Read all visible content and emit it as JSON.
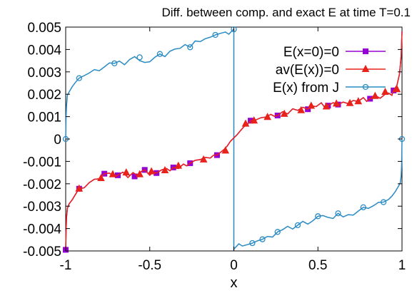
{
  "chart_data": {
    "type": "line",
    "title": "Diff. between comp. and exact E at time T=0.1",
    "xlabel": "x",
    "ylabel": "",
    "xlim": [
      -1,
      1
    ],
    "ylim": [
      -0.005,
      0.005
    ],
    "xticks": [
      -1,
      -0.5,
      0,
      0.5,
      1
    ],
    "xtick_labels": [
      "-1",
      "-0.5",
      "0",
      "0.5",
      "1"
    ],
    "yticks": [
      0.005,
      0.004,
      0.003,
      0.002,
      0.001,
      0,
      -0.001,
      -0.002,
      -0.003,
      -0.004,
      -0.005
    ],
    "ytick_labels": [
      "0.005",
      "0.004",
      "0.003",
      "0.002",
      "0.001",
      "0",
      "-0.001",
      "-0.002",
      "-0.003",
      "-0.004",
      "-0.005"
    ],
    "grid": false,
    "legend_position": "top-right",
    "series": [
      {
        "name": "E(x=0)=0",
        "color": "#9400d3",
        "marker": "square",
        "marker_x": [
          -1.0,
          -0.92,
          -0.77,
          -0.69,
          -0.59,
          -0.53,
          -0.46,
          -0.36,
          -0.26,
          -0.1,
          0.1,
          0.26,
          0.44,
          0.56,
          0.62,
          0.81,
          0.95
        ],
        "marker_y": [
          -0.00495,
          -0.00222,
          -0.00155,
          -0.00162,
          -0.00167,
          -0.00138,
          -0.00152,
          -0.00127,
          -0.00108,
          -0.00072,
          0.00082,
          0.00105,
          0.00133,
          0.00149,
          0.00154,
          0.0018,
          0.00217
        ],
        "x": [
          -1.0,
          -0.998,
          -0.995,
          -0.99,
          -0.98,
          -0.96,
          -0.94,
          -0.92,
          -0.89,
          -0.86,
          -0.83,
          -0.8,
          -0.77,
          -0.74,
          -0.71,
          -0.69,
          -0.66,
          -0.63,
          -0.6,
          -0.57,
          -0.55,
          -0.53,
          -0.5,
          -0.48,
          -0.46,
          -0.43,
          -0.4,
          -0.38,
          -0.36,
          -0.33,
          -0.3,
          -0.28,
          -0.26,
          -0.23,
          -0.2,
          -0.17,
          -0.14,
          -0.12,
          -0.1,
          -0.08,
          -0.06,
          -0.04,
          -0.02,
          0.0,
          0.02,
          0.04,
          0.06,
          0.08,
          0.1,
          0.13,
          0.16,
          0.19,
          0.22,
          0.24,
          0.26,
          0.29,
          0.32,
          0.35,
          0.38,
          0.41,
          0.44,
          0.46,
          0.49,
          0.52,
          0.54,
          0.56,
          0.59,
          0.62,
          0.65,
          0.68,
          0.71,
          0.74,
          0.77,
          0.79,
          0.81,
          0.84,
          0.87,
          0.9,
          0.92,
          0.94,
          0.95,
          0.97,
          0.985,
          0.995,
          1.0
        ],
        "y": [
          -0.00495,
          -0.0042,
          -0.0035,
          -0.0031,
          -0.0029,
          -0.0027,
          -0.00245,
          -0.00222,
          -0.00218,
          -0.00195,
          -0.0018,
          -0.00178,
          -0.00155,
          -0.00152,
          -0.00168,
          -0.00162,
          -0.00148,
          -0.00172,
          -0.0015,
          -0.00165,
          -0.00145,
          -0.00138,
          -0.00162,
          -0.00148,
          -0.00152,
          -0.00138,
          -0.00132,
          -0.00142,
          -0.00127,
          -0.00132,
          -0.00112,
          -0.0012,
          -0.00108,
          -0.00095,
          -0.00092,
          -0.00082,
          -0.00085,
          -0.00072,
          -0.00072,
          -0.0006,
          -0.00048,
          -0.00032,
          -0.0001,
          5e-05,
          0.0002,
          0.00038,
          0.00055,
          0.00065,
          0.00082,
          0.00085,
          0.00095,
          0.00098,
          0.0011,
          0.00102,
          0.00105,
          0.00122,
          0.00112,
          0.00135,
          0.00128,
          0.00142,
          0.00133,
          0.00148,
          0.00145,
          0.00162,
          0.00142,
          0.00149,
          0.00162,
          0.00154,
          0.00165,
          0.00158,
          0.00172,
          0.00168,
          0.00185,
          0.00168,
          0.0018,
          0.00195,
          0.00182,
          0.002,
          0.00205,
          0.00195,
          0.00217,
          0.0024,
          0.0029,
          0.0037,
          0.0048
        ]
      },
      {
        "name": "av(E(x))=0",
        "color": "#e8231a",
        "marker": "triangle",
        "marker_x": [
          -0.92,
          -0.79,
          -0.72,
          -0.64,
          -0.56,
          -0.49,
          -0.41,
          -0.33,
          -0.18,
          -0.05,
          0.07,
          0.12,
          0.2,
          0.3,
          0.4,
          0.46,
          0.55,
          0.61,
          0.69,
          0.74,
          0.84,
          0.9,
          0.97
        ],
        "marker_y": [
          -0.00222,
          -0.00175,
          -0.00158,
          -0.0015,
          -0.00158,
          -0.00145,
          -0.0014,
          -0.0012,
          -0.00092,
          -0.00052,
          0.00068,
          0.00082,
          0.00098,
          0.00112,
          0.00128,
          0.00148,
          0.00145,
          0.00158,
          0.0016,
          0.00168,
          0.00192,
          0.0021,
          0.00222
        ],
        "x": [
          -1.0,
          -0.998,
          -0.995,
          -0.99,
          -0.98,
          -0.96,
          -0.94,
          -0.92,
          -0.89,
          -0.86,
          -0.83,
          -0.8,
          -0.77,
          -0.74,
          -0.71,
          -0.69,
          -0.66,
          -0.63,
          -0.6,
          -0.57,
          -0.55,
          -0.53,
          -0.5,
          -0.48,
          -0.46,
          -0.43,
          -0.4,
          -0.38,
          -0.36,
          -0.33,
          -0.3,
          -0.28,
          -0.26,
          -0.23,
          -0.2,
          -0.17,
          -0.14,
          -0.12,
          -0.1,
          -0.08,
          -0.06,
          -0.04,
          -0.02,
          0.0,
          0.02,
          0.04,
          0.06,
          0.08,
          0.1,
          0.13,
          0.16,
          0.19,
          0.22,
          0.24,
          0.26,
          0.29,
          0.32,
          0.35,
          0.38,
          0.41,
          0.44,
          0.46,
          0.49,
          0.52,
          0.54,
          0.56,
          0.59,
          0.62,
          0.65,
          0.68,
          0.71,
          0.74,
          0.77,
          0.79,
          0.81,
          0.84,
          0.87,
          0.9,
          0.92,
          0.94,
          0.95,
          0.97,
          0.985,
          0.995,
          1.0
        ],
        "y": [
          -0.00495,
          -0.0042,
          -0.0035,
          -0.0031,
          -0.0029,
          -0.0027,
          -0.00245,
          -0.00222,
          -0.00218,
          -0.00195,
          -0.0018,
          -0.00178,
          -0.00155,
          -0.00152,
          -0.00168,
          -0.00162,
          -0.00148,
          -0.00172,
          -0.0015,
          -0.00165,
          -0.00145,
          -0.00138,
          -0.00162,
          -0.00148,
          -0.00152,
          -0.00138,
          -0.00132,
          -0.00142,
          -0.00127,
          -0.00132,
          -0.00112,
          -0.0012,
          -0.00108,
          -0.00095,
          -0.00092,
          -0.00082,
          -0.00085,
          -0.00072,
          -0.00072,
          -0.0006,
          -0.00048,
          -0.00032,
          -0.0001,
          5e-05,
          0.0002,
          0.00038,
          0.00055,
          0.00065,
          0.00082,
          0.00085,
          0.00095,
          0.00098,
          0.0011,
          0.00102,
          0.00105,
          0.00122,
          0.00112,
          0.00135,
          0.00128,
          0.00142,
          0.00133,
          0.00148,
          0.00145,
          0.00162,
          0.00142,
          0.00149,
          0.00162,
          0.00154,
          0.00165,
          0.00158,
          0.00172,
          0.00168,
          0.00185,
          0.00168,
          0.0018,
          0.00195,
          0.00182,
          0.002,
          0.00205,
          0.00195,
          0.00217,
          0.0024,
          0.0029,
          0.0037,
          0.0048
        ]
      },
      {
        "name": "E(x) from J",
        "color": "#2a8bc4",
        "marker": "circle",
        "segments": [
          {
            "x": [
              -1.0,
              -0.998,
              -0.995,
              -0.99,
              -0.98,
              -0.96,
              -0.94,
              -0.92,
              -0.89,
              -0.86,
              -0.83,
              -0.8,
              -0.77,
              -0.74,
              -0.71,
              -0.68,
              -0.65,
              -0.62,
              -0.59,
              -0.56,
              -0.53,
              -0.5,
              -0.47,
              -0.44,
              -0.41,
              -0.38,
              -0.35,
              -0.32,
              -0.29,
              -0.26,
              -0.23,
              -0.2,
              -0.17,
              -0.14,
              -0.11,
              -0.08,
              -0.05,
              -0.03,
              -0.015,
              -0.005,
              0.0
            ],
            "y": [
              0.0,
              0.0009,
              0.0015,
              0.00195,
              0.0021,
              0.00235,
              0.00255,
              0.00272,
              0.00283,
              0.00295,
              0.0031,
              0.00305,
              0.00322,
              0.0034,
              0.00338,
              0.00348,
              0.00332,
              0.00355,
              0.00368,
              0.0035,
              0.00342,
              0.00345,
              0.00365,
              0.0038,
              0.00368,
              0.00392,
              0.00402,
              0.00405,
              0.00422,
              0.0041,
              0.00438,
              0.00435,
              0.00448,
              0.00455,
              0.00465,
              0.00472,
              0.00478,
              0.00468,
              0.0048,
              0.00488,
              0.0049
            ],
            "marker_x": [
              -1.0,
              -0.92,
              -0.71,
              -0.56,
              -0.44,
              -0.26,
              -0.11,
              0.0
            ],
            "marker_y": [
              0.0,
              0.00272,
              0.00338,
              0.00365,
              0.0038,
              0.0041,
              0.00465,
              0.0049
            ]
          },
          {
            "x": [
              0.0,
              0.005,
              0.015,
              0.03,
              0.05,
              0.08,
              0.11,
              0.14,
              0.17,
              0.2,
              0.23,
              0.26,
              0.29,
              0.32,
              0.35,
              0.38,
              0.41,
              0.44,
              0.47,
              0.5,
              0.53,
              0.56,
              0.59,
              0.62,
              0.65,
              0.68,
              0.71,
              0.74,
              0.77,
              0.8,
              0.83,
              0.86,
              0.89,
              0.92,
              0.94,
              0.96,
              0.98,
              0.99,
              0.995,
              0.998,
              1.0
            ],
            "y": [
              -0.0049,
              -0.00488,
              -0.0048,
              -0.00468,
              -0.00478,
              -0.00472,
              -0.00465,
              -0.00455,
              -0.00448,
              -0.00435,
              -0.00438,
              -0.00415,
              -0.00405,
              -0.0039,
              -0.00402,
              -0.00385,
              -0.00368,
              -0.0038,
              -0.00365,
              -0.00345,
              -0.00342,
              -0.0035,
              -0.00355,
              -0.00332,
              -0.00348,
              -0.00338,
              -0.0034,
              -0.00322,
              -0.00305,
              -0.0031,
              -0.00298,
              -0.00283,
              -0.00282,
              -0.0027,
              -0.00255,
              -0.00235,
              -0.0021,
              -0.00195,
              -0.00165,
              -0.0011,
              0.0
            ],
            "marker_x": [
              0.11,
              0.17,
              0.26,
              0.38,
              0.5,
              0.62,
              0.77,
              0.89,
              1.0
            ],
            "marker_y": [
              -0.00465,
              -0.00448,
              -0.00415,
              -0.00385,
              -0.00345,
              -0.00332,
              -0.00305,
              -0.00282,
              0.0
            ]
          }
        ],
        "extra_lines": [
          {
            "x": [
              0.0,
              0.0
            ],
            "y": [
              0.0049,
              -0.005
            ]
          }
        ]
      }
    ]
  }
}
